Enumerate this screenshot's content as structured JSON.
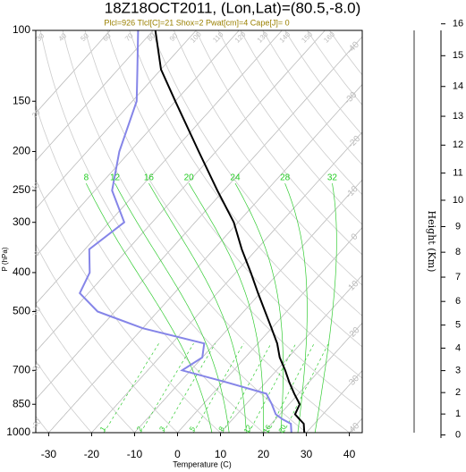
{
  "chart_data": {
    "type": "skewt",
    "title": "18Z18OCT2011, (Lon,Lat)=(80.5,-8.0)",
    "subtitle": "Plcl=926 Tlcl[C]=21 Shox=2 Pwat[cm]=4 Cape[J]= 0",
    "xlabel": "Temperature (C)",
    "ylabel": "P (hPa)",
    "y2label": "Height (Km)",
    "xlim": [
      -33,
      43
    ],
    "xticks": [
      -30,
      -20,
      -10,
      0,
      10,
      20,
      30,
      40
    ],
    "ylim": [
      1000,
      100
    ],
    "yticks": [
      100,
      150,
      200,
      250,
      300,
      400,
      500,
      700,
      850,
      1000
    ],
    "log_y": true,
    "height_ticks": [
      0,
      1,
      2,
      3,
      4,
      5,
      6,
      7,
      8,
      9,
      10,
      11,
      12,
      13,
      14,
      15,
      16
    ],
    "pressure": [
      1000,
      950,
      925,
      900,
      850,
      800,
      750,
      700,
      650,
      600,
      550,
      500,
      450,
      400,
      350,
      300,
      250,
      200,
      150,
      125,
      100
    ],
    "series": [
      {
        "color": "#000000",
        "values": [
          29.5,
          27.5,
          25.5,
          23.5,
          22.5,
          19,
          15.5,
          12,
          8,
          4.5,
          0,
          -5,
          -10.5,
          -16.5,
          -23.5,
          -31,
          -41.5,
          -54,
          -70,
          -80,
          -89.5
        ]
      },
      {
        "color": "#8585e8",
        "values": [
          26.5,
          24.5,
          21.5,
          19,
          16,
          12.5,
          1,
          -12,
          -10,
          -12.5,
          -30,
          -44,
          -52,
          -54,
          -59,
          -56.5,
          -66,
          -72.5,
          -79,
          -85.5,
          -93.5
        ]
      }
    ],
    "isotherms": [
      -100,
      -90,
      -80,
      -70,
      -60,
      -50,
      -40,
      -30,
      -20,
      -10,
      0,
      10,
      20,
      30,
      40
    ],
    "dry_adiabats": [
      -40,
      -30,
      -20,
      -10,
      0,
      10,
      20,
      30,
      40,
      50,
      60,
      70,
      80,
      90,
      100,
      110,
      120,
      130,
      140,
      150,
      160
    ],
    "moist_adiabats": [
      8,
      12,
      16,
      20,
      24,
      28,
      32
    ],
    "mixing_ratios": [
      1,
      2,
      3,
      5,
      8,
      12,
      16,
      20
    ]
  }
}
